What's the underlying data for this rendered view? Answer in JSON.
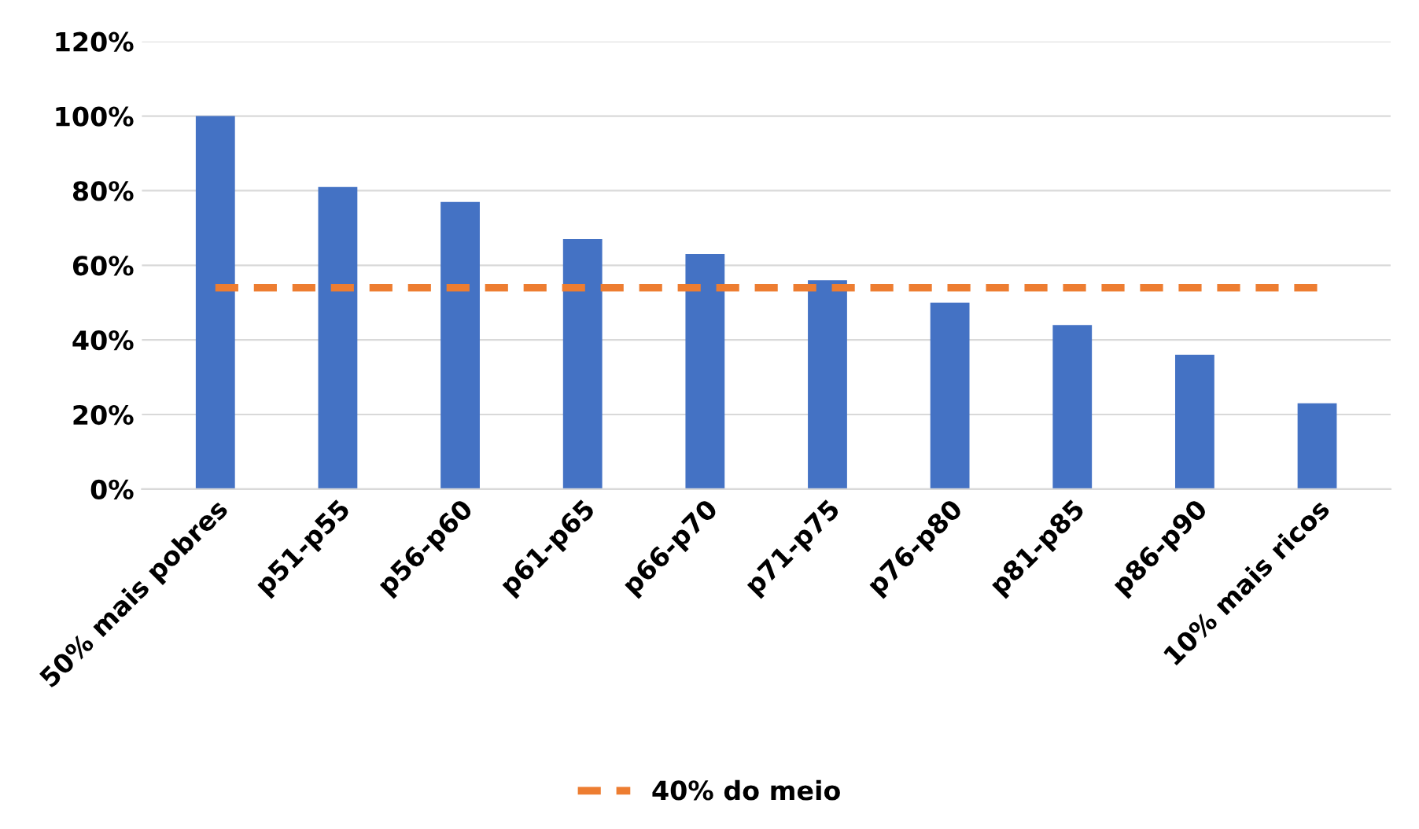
{
  "chart_data": {
    "type": "bar",
    "categories": [
      "50% mais pobres",
      "p51-p55",
      "p56-p60",
      "p61-p65",
      "p66-p70",
      "p71-p75",
      "p76-p80",
      "p81-p85",
      "p86-p90",
      "10% mais ricos"
    ],
    "series": [
      {
        "color": "#4472c4",
        "values": [
          100,
          81,
          77,
          67,
          63,
          56,
          50,
          44,
          36,
          23
        ]
      },
      {
        "type": "line",
        "name": "40% do meio",
        "color": "#ed7d31",
        "line_style": "dashed",
        "values": [
          54,
          54,
          54,
          54,
          54,
          54,
          54,
          54,
          54,
          54
        ]
      }
    ],
    "ylim": [
      0,
      120
    ],
    "yticks": [
      {
        "value": 0,
        "label": "0%"
      },
      {
        "value": 20,
        "label": "20%"
      },
      {
        "value": 40,
        "label": "40%"
      },
      {
        "value": 60,
        "label": "60%"
      },
      {
        "value": 80,
        "label": "80%"
      },
      {
        "value": 100,
        "label": "100%"
      },
      {
        "value": 120,
        "label": "120%"
      }
    ],
    "grid": "y",
    "legend": "bottom"
  }
}
